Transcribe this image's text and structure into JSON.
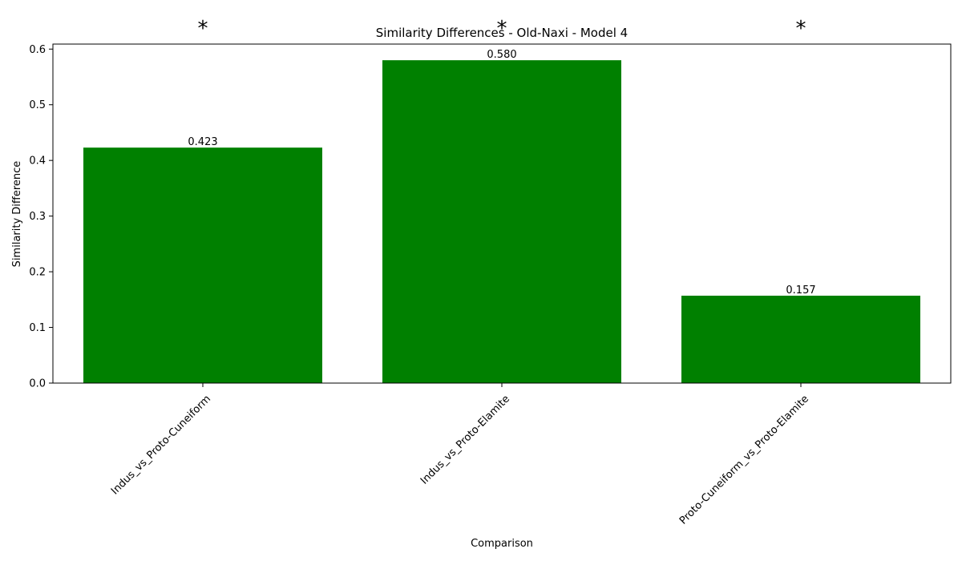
{
  "chart_data": {
    "type": "bar",
    "title": "Similarity Differences - Old-Naxi - Model 4",
    "xlabel": "Comparison",
    "ylabel": "Similarity Difference",
    "categories": [
      "Indus_vs_Proto-Cuneiform",
      "Indus_vs_Proto-Elamite",
      "Proto-Cuneiform_vs_Proto-Elamite"
    ],
    "values": [
      0.423,
      0.58,
      0.157
    ],
    "value_labels": [
      "0.423",
      "0.580",
      "0.157"
    ],
    "significance_markers": [
      "*",
      "*",
      "*"
    ],
    "yticks": [
      0.0,
      0.1,
      0.2,
      0.3,
      0.4,
      0.5,
      0.6
    ],
    "ytick_labels": [
      "0.0",
      "0.1",
      "0.2",
      "0.3",
      "0.4",
      "0.5",
      "0.6"
    ],
    "ylim": [
      0,
      0.609
    ],
    "bar_color": "#008000",
    "grid": false,
    "legend": null
  }
}
